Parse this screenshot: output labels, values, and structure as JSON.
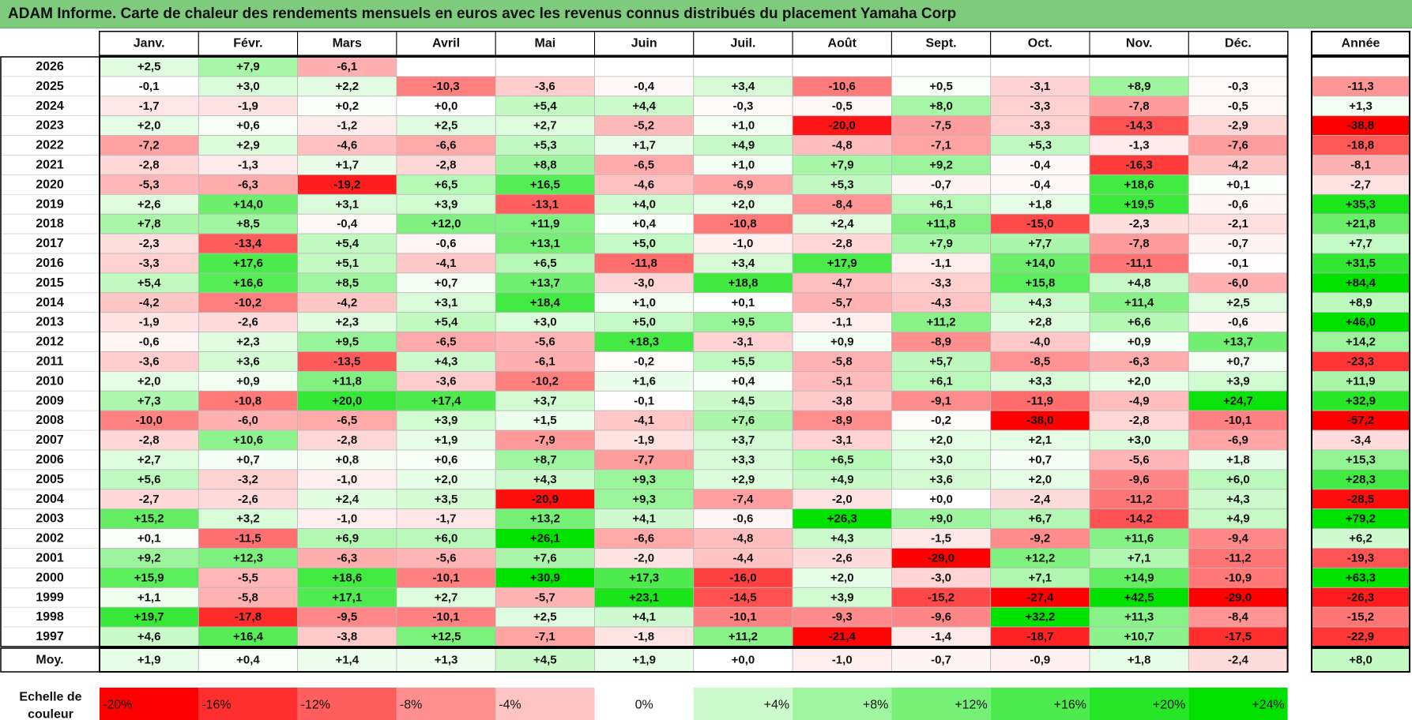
{
  "title": "ADAM Informe. Carte de chaleur des rendements mensuels en euros avec les revenus connus distribués du placement Yamaha Corp",
  "colors": {
    "title_bg": "#7ecb7e",
    "strong_negative": "#ff0000",
    "strong_positive": "#00e000",
    "neutral": "#ffffff"
  },
  "chart_data": {
    "type": "heatmap",
    "title": "ADAM Informe. Carte de chaleur des rendements mensuels en euros avec les revenus connus distribués du placement Yamaha Corp",
    "months": [
      "Janv.",
      "Févr.",
      "Mars",
      "Avril",
      "Mai",
      "Juin",
      "Juil.",
      "Août",
      "Sept.",
      "Oct.",
      "Nov.",
      "Déc."
    ],
    "year_header": "Année",
    "rows": [
      {
        "year": "2026",
        "values": [
          "+2,5",
          "+7,9",
          "-6,1",
          "",
          "",
          "",
          "",
          "",
          "",
          "",
          "",
          ""
        ],
        "annual": ""
      },
      {
        "year": "2025",
        "values": [
          "-0,1",
          "+3,0",
          "+2,2",
          "-10,3",
          "-3,6",
          "-0,4",
          "+3,4",
          "-10,6",
          "+0,5",
          "-3,1",
          "+8,9",
          "-0,3"
        ],
        "annual": "-11,3"
      },
      {
        "year": "2024",
        "values": [
          "-1,7",
          "-1,9",
          "+0,2",
          "+0,0",
          "+5,4",
          "+4,4",
          "-0,3",
          "-0,5",
          "+8,0",
          "-3,3",
          "-7,8",
          "-0,5"
        ],
        "annual": "+1,3"
      },
      {
        "year": "2023",
        "values": [
          "+2,0",
          "+0,6",
          "-1,2",
          "+2,5",
          "+2,7",
          "-5,2",
          "+1,0",
          "-20,0",
          "-7,5",
          "-3,3",
          "-14,3",
          "-2,9"
        ],
        "annual": "-38,8"
      },
      {
        "year": "2022",
        "values": [
          "-7,2",
          "+2,9",
          "-4,6",
          "-6,6",
          "+5,3",
          "+1,7",
          "+4,9",
          "-4,8",
          "-7,1",
          "+5,3",
          "-1,3",
          "-7,6"
        ],
        "annual": "-18,8"
      },
      {
        "year": "2021",
        "values": [
          "-2,8",
          "-1,3",
          "+1,7",
          "-2,8",
          "+8,8",
          "-6,5",
          "+1,0",
          "+7,9",
          "+9,2",
          "-0,4",
          "-16,3",
          "-4,2"
        ],
        "annual": "-8,1"
      },
      {
        "year": "2020",
        "values": [
          "-5,3",
          "-6,3",
          "-19,2",
          "+6,5",
          "+16,5",
          "-4,6",
          "-6,9",
          "+5,3",
          "-0,7",
          "-0,4",
          "+18,6",
          "+0,1"
        ],
        "annual": "-2,7"
      },
      {
        "year": "2019",
        "values": [
          "+2,6",
          "+14,0",
          "+3,1",
          "+3,9",
          "-13,1",
          "+4,0",
          "+2,0",
          "-8,4",
          "+6,1",
          "+1,8",
          "+19,5",
          "-0,6"
        ],
        "annual": "+35,3"
      },
      {
        "year": "2018",
        "values": [
          "+7,8",
          "+8,5",
          "-0,4",
          "+12,0",
          "+11,9",
          "+0,4",
          "-10,8",
          "+2,4",
          "+11,8",
          "-15,0",
          "-2,3",
          "-2,1"
        ],
        "annual": "+21,8"
      },
      {
        "year": "2017",
        "values": [
          "-2,3",
          "-13,4",
          "+5,4",
          "-0,6",
          "+13,1",
          "+5,0",
          "-1,0",
          "-2,8",
          "+7,9",
          "+7,7",
          "-7,8",
          "-0,7"
        ],
        "annual": "+7,7"
      },
      {
        "year": "2016",
        "values": [
          "-3,3",
          "+17,6",
          "+5,1",
          "-4,1",
          "+6,5",
          "-11,8",
          "+3,4",
          "+17,9",
          "-1,1",
          "+14,0",
          "-11,1",
          "-0,1"
        ],
        "annual": "+31,5"
      },
      {
        "year": "2015",
        "values": [
          "+5,4",
          "+16,6",
          "+8,5",
          "+0,7",
          "+13,7",
          "-3,0",
          "+18,8",
          "-4,7",
          "-3,3",
          "+15,8",
          "+4,8",
          "-6,0"
        ],
        "annual": "+84,4"
      },
      {
        "year": "2014",
        "values": [
          "-4,2",
          "-10,2",
          "-4,2",
          "+3,1",
          "+18,4",
          "+1,0",
          "+0,1",
          "-5,7",
          "-4,3",
          "+4,3",
          "+11,4",
          "+2,5"
        ],
        "annual": "+8,9"
      },
      {
        "year": "2013",
        "values": [
          "-1,9",
          "-2,6",
          "+2,3",
          "+5,4",
          "+3,0",
          "+5,0",
          "+9,5",
          "-1,1",
          "+11,2",
          "+2,8",
          "+6,6",
          "-0,6"
        ],
        "annual": "+46,0"
      },
      {
        "year": "2012",
        "values": [
          "-0,6",
          "+2,3",
          "+9,5",
          "-6,5",
          "-5,6",
          "+18,3",
          "-3,1",
          "+0,9",
          "-8,9",
          "-4,0",
          "+0,9",
          "+13,7"
        ],
        "annual": "+14,2"
      },
      {
        "year": "2011",
        "values": [
          "-3,6",
          "+3,6",
          "-13,5",
          "+4,3",
          "-6,1",
          "-0,2",
          "+5,5",
          "-5,8",
          "+5,7",
          "-8,5",
          "-6,3",
          "+0,7"
        ],
        "annual": "-23,3"
      },
      {
        "year": "2010",
        "values": [
          "+2,0",
          "+0,9",
          "+11,8",
          "-3,6",
          "-10,2",
          "+1,6",
          "+0,4",
          "-5,1",
          "+6,1",
          "+3,3",
          "+2,0",
          "+3,9"
        ],
        "annual": "+11,9"
      },
      {
        "year": "2009",
        "values": [
          "+7,3",
          "-10,8",
          "+20,0",
          "+17,4",
          "+3,7",
          "-0,1",
          "+4,5",
          "-3,8",
          "-9,1",
          "-11,9",
          "-4,9",
          "+24,7"
        ],
        "annual": "+32,9"
      },
      {
        "year": "2008",
        "values": [
          "-10,0",
          "-6,0",
          "-6,5",
          "+3,9",
          "+1,5",
          "-4,1",
          "+7,6",
          "-8,9",
          "-0,2",
          "-38,0",
          "-2,8",
          "-10,1"
        ],
        "annual": "-57,2"
      },
      {
        "year": "2007",
        "values": [
          "-2,8",
          "+10,6",
          "-2,8",
          "+1,9",
          "-7,9",
          "-1,9",
          "+3,7",
          "-3,1",
          "+2,0",
          "+2,1",
          "+3,0",
          "-6,9"
        ],
        "annual": "-3,4"
      },
      {
        "year": "2006",
        "values": [
          "+2,7",
          "+0,7",
          "+0,8",
          "+0,6",
          "+8,7",
          "-7,7",
          "+3,3",
          "+6,5",
          "+3,0",
          "+0,7",
          "-5,6",
          "+1,8"
        ],
        "annual": "+15,3"
      },
      {
        "year": "2005",
        "values": [
          "+5,6",
          "-3,2",
          "-1,0",
          "+2,0",
          "+4,3",
          "+9,3",
          "+2,9",
          "+4,9",
          "+3,6",
          "+2,0",
          "-9,6",
          "+6,0"
        ],
        "annual": "+28,3"
      },
      {
        "year": "2004",
        "values": [
          "-2,7",
          "-2,6",
          "+2,4",
          "+3,5",
          "-20,9",
          "+9,3",
          "-7,4",
          "-2,0",
          "+0,0",
          "-2,4",
          "-11,2",
          "+4,3"
        ],
        "annual": "-28,5"
      },
      {
        "year": "2003",
        "values": [
          "+15,2",
          "+3,2",
          "-1,0",
          "-1,7",
          "+13,2",
          "+4,1",
          "-0,6",
          "+26,3",
          "+9,0",
          "+6,7",
          "-14,2",
          "+4,9"
        ],
        "annual": "+79,2"
      },
      {
        "year": "2002",
        "values": [
          "+0,1",
          "-11,5",
          "+6,9",
          "+6,0",
          "+26,1",
          "-6,6",
          "-4,8",
          "+4,3",
          "-1,5",
          "-9,2",
          "+11,6",
          "-9,4"
        ],
        "annual": "+6,2"
      },
      {
        "year": "2001",
        "values": [
          "+9,2",
          "+12,3",
          "-6,3",
          "-5,6",
          "+7,6",
          "-2,0",
          "-4,4",
          "-2,6",
          "-29,0",
          "+12,2",
          "+7,1",
          "-11,2"
        ],
        "annual": "-19,3"
      },
      {
        "year": "2000",
        "values": [
          "+15,9",
          "-5,5",
          "+18,6",
          "-10,1",
          "+30,9",
          "+17,3",
          "-16,0",
          "+2,0",
          "-3,0",
          "+7,1",
          "+14,9",
          "-10,9"
        ],
        "annual": "+63,3"
      },
      {
        "year": "1999",
        "values": [
          "+1,1",
          "-5,8",
          "+17,1",
          "+2,7",
          "-5,7",
          "+23,1",
          "-14,5",
          "+3,9",
          "-15,2",
          "-27,4",
          "+42,5",
          "-29,0"
        ],
        "annual": "-26,3"
      },
      {
        "year": "1998",
        "values": [
          "+19,7",
          "-17,8",
          "-9,5",
          "-10,1",
          "+2,5",
          "+4,1",
          "-10,1",
          "-9,3",
          "-9,6",
          "+32,2",
          "+11,3",
          "-8,4"
        ],
        "annual": "-15,2"
      },
      {
        "year": "1997",
        "values": [
          "+4,6",
          "+16,4",
          "-3,8",
          "+12,5",
          "-7,1",
          "-1,8",
          "+11,2",
          "-21,4",
          "-1,4",
          "-18,7",
          "+10,7",
          "-17,5"
        ],
        "annual": "-22,9"
      }
    ],
    "average": {
      "label": "Moy.",
      "values": [
        "+1,9",
        "+0,4",
        "+1,4",
        "+1,3",
        "+4,5",
        "+1,9",
        "+0,0",
        "-1,0",
        "-0,7",
        "-0,9",
        "+1,8",
        "-2,4"
      ],
      "annual": "+8,0"
    },
    "scale": {
      "label_line1": "Echelle de",
      "label_line2": "couleur",
      "steps": [
        "-20%",
        "-16%",
        "-12%",
        "-8%",
        "-4%",
        "0%",
        "+4%",
        "+8%",
        "+12%",
        "+16%",
        "+20%",
        "+24%"
      ],
      "step_values": [
        -20,
        -16,
        -12,
        -8,
        -4,
        0,
        4,
        8,
        12,
        16,
        20,
        24
      ]
    }
  }
}
